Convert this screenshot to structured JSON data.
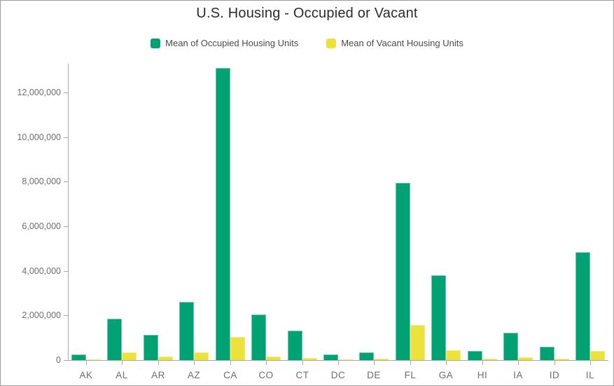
{
  "title": "U.S. Housing - Occupied or Vacant",
  "legend": {
    "items": [
      {
        "label": "Mean of Occupied Housing Units",
        "color": "#00A173"
      },
      {
        "label": "Mean of Vacant Housing Units",
        "color": "#EDE23C"
      }
    ]
  },
  "colors": {
    "occupied_fill": "#00A173",
    "occupied_edge": "#6CC7AE",
    "vacant_fill": "#EDE23C",
    "vacant_edge": "#F2EB86",
    "title_text": "#2b2b2b",
    "axis_line": "#a9a9a9",
    "tick_label": "#6e6e6e",
    "legend_text": "#4a4a4a",
    "canvas_border": "#9c9c9c"
  },
  "chart_data": {
    "type": "bar",
    "title": "U.S. Housing - Occupied or Vacant",
    "xlabel": "",
    "ylabel": "",
    "grid": false,
    "legend_position": "top-center",
    "categories": [
      "AK",
      "AL",
      "AR",
      "AZ",
      "CA",
      "CO",
      "CT",
      "DC",
      "DE",
      "FL",
      "GA",
      "HI",
      "IA",
      "ID",
      "IL"
    ],
    "series": [
      {
        "name": "Mean of Occupied Housing Units",
        "color": "#00A173",
        "edge_color": "#6CC7AE",
        "values": [
          260000,
          1850000,
          1120000,
          2600000,
          13100000,
          2050000,
          1320000,
          250000,
          330000,
          7940000,
          3790000,
          400000,
          1230000,
          600000,
          4850000
        ]
      },
      {
        "name": "Mean of Vacant Housing Units",
        "color": "#EDE23C",
        "edge_color": "#F2EB86",
        "values": [
          45000,
          330000,
          160000,
          350000,
          1050000,
          170000,
          95000,
          30000,
          60000,
          1580000,
          430000,
          70000,
          130000,
          60000,
          420000
        ]
      }
    ],
    "ylim": [
      0,
      13300000
    ],
    "yticks": [
      0,
      2000000,
      4000000,
      6000000,
      8000000,
      10000000,
      12000000
    ],
    "y_tick_labels": [
      "0",
      "2,000,000",
      "4,000,000",
      "6,000,000",
      "8,000,000",
      "10,000,000",
      "12,000,000"
    ]
  }
}
